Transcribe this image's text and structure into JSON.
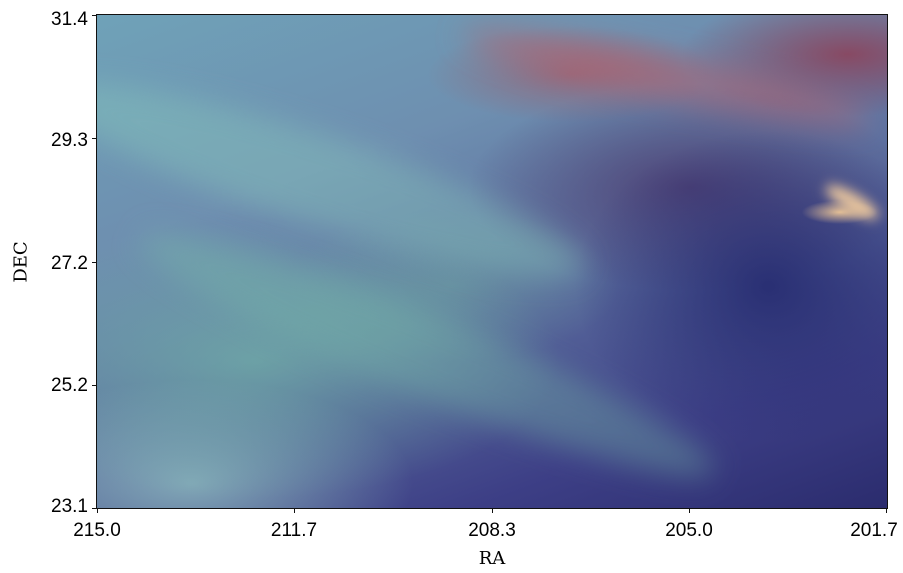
{
  "axes": {
    "xlabel": "RA",
    "ylabel": "DEC",
    "xticks": [
      "215.0",
      "211.7",
      "208.3",
      "205.0",
      "201.7"
    ],
    "yticks": [
      "31.4",
      "29.3",
      "27.2",
      "25.2",
      "23.1"
    ]
  },
  "image": {
    "description_colors": {
      "cyan_green": "#7fc9b0",
      "blue": "#5b6d9e",
      "deep_blue": "#2b2c6e",
      "red_purple": "#9a4f6a",
      "highlight": "#f0c896"
    }
  }
}
